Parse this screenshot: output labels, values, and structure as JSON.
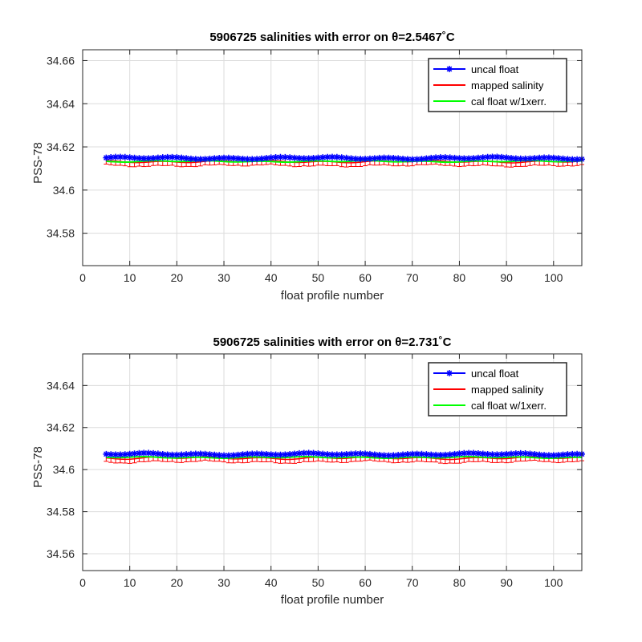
{
  "chart_data": [
    {
      "type": "line",
      "title": "5906725 salinities with error on θ=2.5467˚C",
      "xlabel": "float profile number",
      "ylabel": "PSS-78",
      "xlim": [
        0,
        106
      ],
      "ylim": [
        34.565,
        34.665
      ],
      "xticks": [
        0,
        10,
        20,
        30,
        40,
        50,
        60,
        70,
        80,
        90,
        100
      ],
      "yticks": [
        34.58,
        34.6,
        34.62,
        34.64,
        34.66
      ],
      "ytick_labels": [
        "34.58",
        "34.6",
        "34.62",
        "34.64",
        "34.66"
      ],
      "grid": true,
      "legend_position": "top-right",
      "x_range": [
        5,
        106
      ],
      "series": [
        {
          "name": "uncal float",
          "color": "#0000ff",
          "marker": "asterisk",
          "base": 34.6148,
          "amplitude": 0.0006
        },
        {
          "name": "mapped salinity",
          "color": "#ff0000",
          "error_bars": true,
          "base": 34.6132,
          "amplitude": 0.0006,
          "error": 0.002
        },
        {
          "name": "cal float w/1xerr.",
          "color": "#00ff00",
          "base": 34.6133,
          "amplitude": 0.0004
        }
      ]
    },
    {
      "type": "line",
      "title": "5906725 salinities with error on θ=2.731˚C",
      "xlabel": "float profile number",
      "ylabel": "PSS-78",
      "xlim": [
        0,
        106
      ],
      "ylim": [
        34.552,
        34.655
      ],
      "xticks": [
        0,
        10,
        20,
        30,
        40,
        50,
        60,
        70,
        80,
        90,
        100
      ],
      "yticks": [
        34.56,
        34.58,
        34.6,
        34.62,
        34.64
      ],
      "ytick_labels": [
        "34.56",
        "34.58",
        "34.6",
        "34.62",
        "34.64"
      ],
      "grid": true,
      "legend_position": "top-right",
      "x_range": [
        5,
        106
      ],
      "series": [
        {
          "name": "uncal float",
          "color": "#0000ff",
          "marker": "asterisk",
          "base": 34.6073,
          "amplitude": 0.0006
        },
        {
          "name": "mapped salinity",
          "color": "#ff0000",
          "error_bars": true,
          "base": 34.6055,
          "amplitude": 0.0007,
          "error": 0.002
        },
        {
          "name": "cal float w/1xerr.",
          "color": "#00ff00",
          "base": 34.6058,
          "amplitude": 0.0004
        }
      ]
    }
  ]
}
